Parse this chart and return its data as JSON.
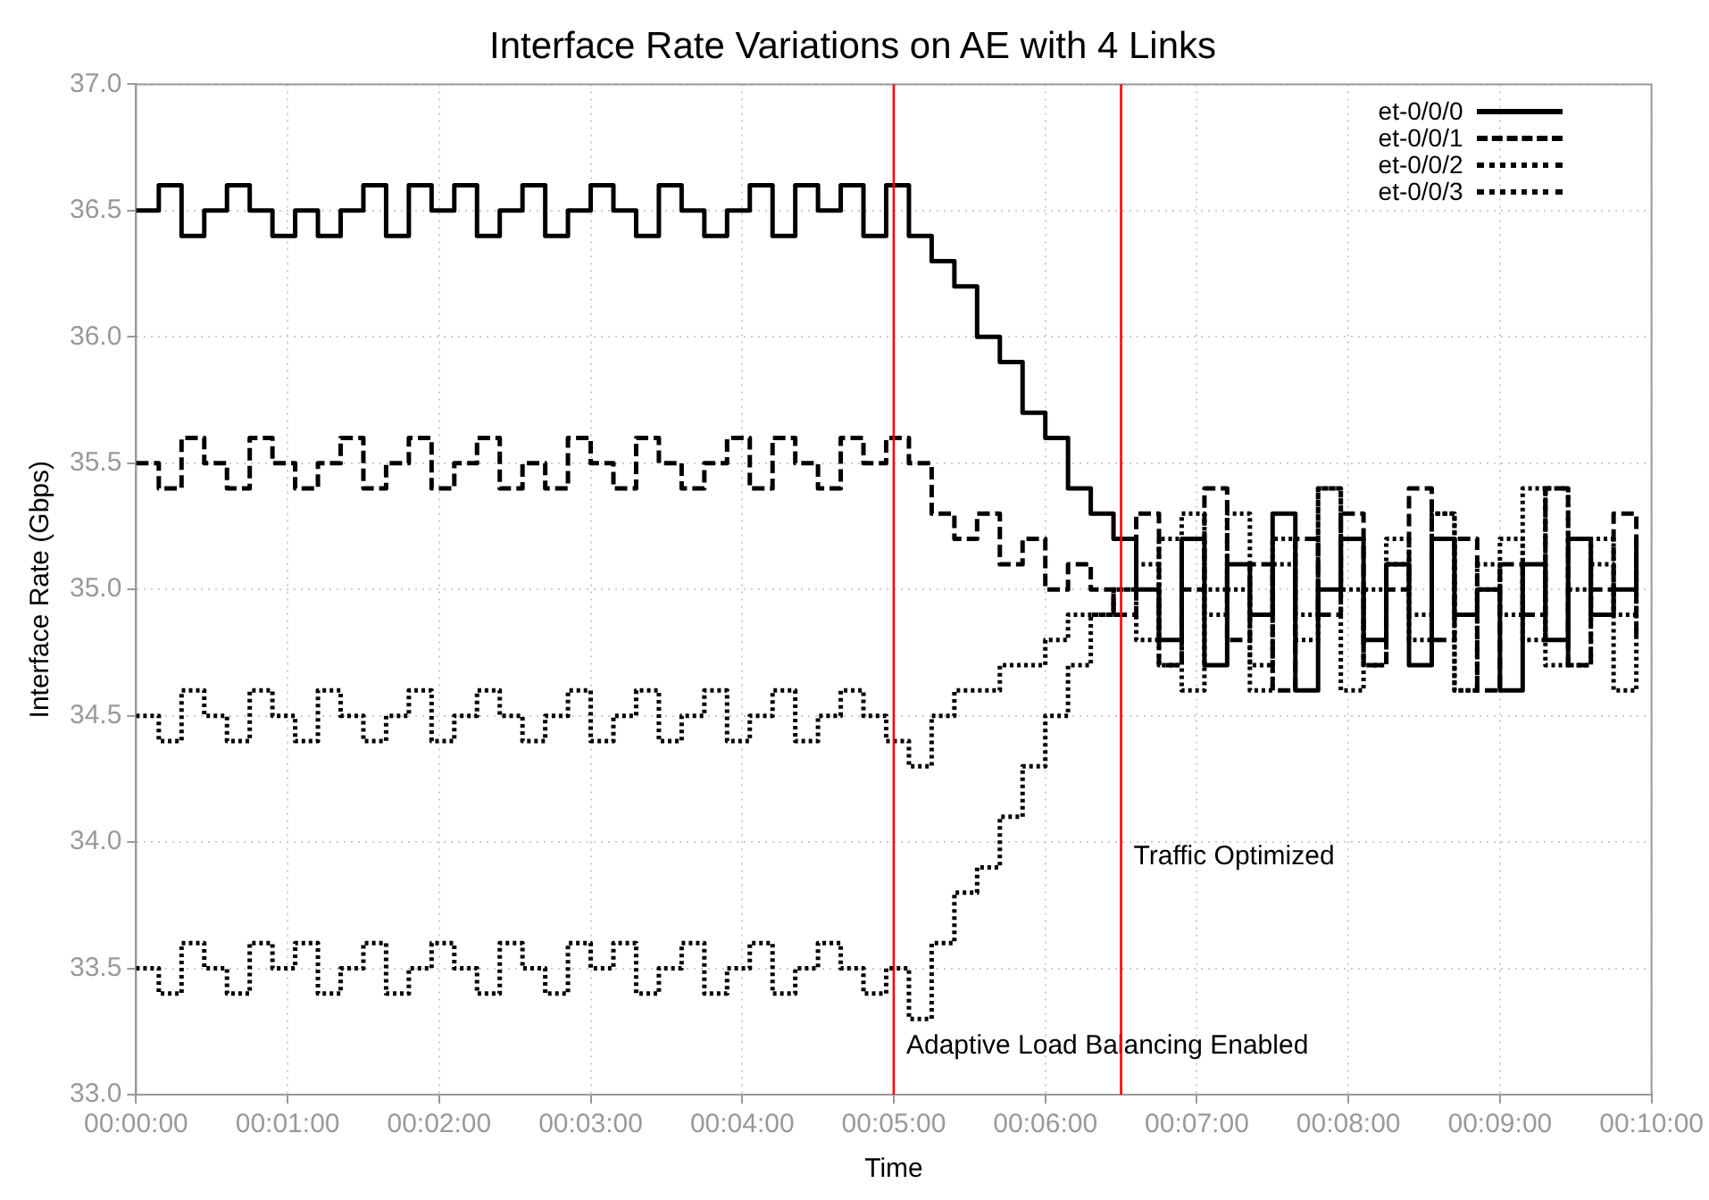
{
  "chart_data": {
    "type": "step",
    "title": "Interface Rate Variations on AE with 4 Links",
    "xlabel": "Time",
    "ylabel": "Interface Rate (Gbps)",
    "x": [
      0,
      0.0025,
      0.005,
      0.0075,
      0.01,
      0.0125,
      0.015,
      0.0175,
      0.02,
      0.0225,
      0.025,
      0.0275,
      0.03,
      0.0325,
      0.035,
      0.0375,
      0.04,
      0.0425,
      0.045,
      0.0475,
      0.05,
      0.0525,
      0.055,
      0.0575,
      0.06,
      0.0625,
      0.065,
      0.0675,
      0.07,
      0.0725,
      0.075,
      0.0775,
      0.08,
      0.0825,
      0.085,
      0.0875,
      0.09,
      0.0925,
      0.095,
      0.0975,
      0.1,
      0.1025,
      0.105,
      0.1075,
      0.11,
      0.1125,
      0.115,
      0.1175,
      0.12,
      0.1225,
      0.125,
      0.1275,
      0.13,
      0.1325,
      0.135,
      0.1375,
      0.14,
      0.1425,
      0.145,
      0.1475,
      0.15,
      0.1525,
      0.155,
      0.1575,
      0.16,
      0.1625,
      0.165
    ],
    "series": [
      {
        "name": "et-0/0/0",
        "color": "#000000",
        "line_style": "solid",
        "values": [
          36.5,
          36.6,
          36.4,
          36.5,
          36.6,
          36.5,
          36.4,
          36.5,
          36.4,
          36.5,
          36.6,
          36.4,
          36.6,
          36.5,
          36.6,
          36.4,
          36.5,
          36.6,
          36.4,
          36.5,
          36.6,
          36.5,
          36.4,
          36.6,
          36.5,
          36.4,
          36.5,
          36.6,
          36.4,
          36.6,
          36.5,
          36.6,
          36.4,
          36.6,
          36.4,
          36.3,
          36.2,
          36.0,
          35.9,
          35.7,
          35.6,
          35.4,
          35.3,
          35.2,
          35.0,
          34.8,
          35.2,
          34.7,
          35.1,
          34.9,
          35.3,
          34.6,
          35.0,
          35.2,
          34.8,
          35.1,
          34.7,
          35.2,
          34.9,
          35.0,
          34.6,
          35.1,
          34.8,
          35.2,
          34.9,
          35.0,
          35.2
        ]
      },
      {
        "name": "et-0/0/1",
        "color": "#000000",
        "line_style": "dashed",
        "values": [
          35.5,
          35.4,
          35.6,
          35.5,
          35.4,
          35.6,
          35.5,
          35.4,
          35.5,
          35.6,
          35.4,
          35.5,
          35.6,
          35.4,
          35.5,
          35.6,
          35.4,
          35.5,
          35.4,
          35.6,
          35.5,
          35.4,
          35.6,
          35.5,
          35.4,
          35.5,
          35.6,
          35.4,
          35.6,
          35.5,
          35.4,
          35.6,
          35.5,
          35.6,
          35.5,
          35.3,
          35.2,
          35.3,
          35.1,
          35.2,
          35.0,
          35.1,
          35.0,
          34.9,
          35.3,
          34.7,
          35.0,
          35.4,
          34.8,
          35.1,
          34.6,
          35.2,
          34.9,
          35.3,
          34.7,
          35.0,
          35.4,
          34.8,
          35.2,
          34.6,
          35.1,
          34.9,
          35.4,
          34.7,
          35.0,
          35.3,
          34.8
        ]
      },
      {
        "name": "et-0/0/2",
        "color": "#000000",
        "line_style": "dotted",
        "values": [
          34.5,
          34.4,
          34.6,
          34.5,
          34.4,
          34.6,
          34.5,
          34.4,
          34.6,
          34.5,
          34.4,
          34.5,
          34.6,
          34.4,
          34.5,
          34.6,
          34.5,
          34.4,
          34.5,
          34.6,
          34.4,
          34.5,
          34.6,
          34.4,
          34.5,
          34.6,
          34.4,
          34.5,
          34.6,
          34.4,
          34.5,
          34.6,
          34.5,
          34.4,
          34.3,
          34.5,
          34.6,
          34.6,
          34.7,
          34.7,
          34.8,
          34.9,
          34.9,
          35.0,
          34.8,
          35.2,
          34.6,
          35.0,
          35.3,
          34.7,
          35.1,
          34.9,
          35.4,
          34.6,
          35.0,
          35.2,
          34.8,
          35.3,
          34.6,
          35.1,
          34.9,
          35.4,
          34.7,
          35.0,
          35.2,
          34.6,
          35.1
        ]
      },
      {
        "name": "et-0/0/3",
        "color": "#000000",
        "line_style": "dotted",
        "values": [
          33.5,
          33.4,
          33.6,
          33.5,
          33.4,
          33.6,
          33.5,
          33.6,
          33.4,
          33.5,
          33.6,
          33.4,
          33.5,
          33.6,
          33.5,
          33.4,
          33.6,
          33.5,
          33.4,
          33.6,
          33.5,
          33.6,
          33.4,
          33.5,
          33.6,
          33.4,
          33.5,
          33.6,
          33.4,
          33.5,
          33.6,
          33.5,
          33.4,
          33.5,
          33.3,
          33.6,
          33.8,
          33.9,
          34.1,
          34.3,
          34.5,
          34.7,
          34.9,
          35.0,
          35.1,
          34.7,
          35.3,
          34.9,
          35.0,
          34.6,
          35.2,
          34.8,
          35.4,
          35.0,
          34.7,
          35.1,
          34.9,
          35.3,
          34.6,
          35.0,
          35.2,
          34.8,
          35.4,
          34.7,
          35.1,
          34.9,
          35.0
        ]
      }
    ],
    "xlim": [
      0,
      0.16667
    ],
    "xticks": [
      {
        "value": 0,
        "label": "00:00:00"
      },
      {
        "value": 0.016667,
        "label": "00:01:00"
      },
      {
        "value": 0.033333,
        "label": "00:02:00"
      },
      {
        "value": 0.05,
        "label": "00:03:00"
      },
      {
        "value": 0.066667,
        "label": "00:04:00"
      },
      {
        "value": 0.083333,
        "label": "00:05:00"
      },
      {
        "value": 0.1,
        "label": "00:06:00"
      },
      {
        "value": 0.116667,
        "label": "00:07:00"
      },
      {
        "value": 0.133333,
        "label": "00:08:00"
      },
      {
        "value": 0.15,
        "label": "00:09:00"
      },
      {
        "value": 0.16667,
        "label": "00:10:00"
      }
    ],
    "ylim": [
      33,
      37
    ],
    "yticks": [
      {
        "value": 33,
        "label": "33.0"
      },
      {
        "value": 33.5,
        "label": "33.5"
      },
      {
        "value": 34,
        "label": "34.0"
      },
      {
        "value": 34.5,
        "label": "34.5"
      },
      {
        "value": 35,
        "label": "35.0"
      },
      {
        "value": 35.5,
        "label": "35.5"
      },
      {
        "value": 36,
        "label": "36.0"
      },
      {
        "value": 36.5,
        "label": "36.5"
      },
      {
        "value": 37,
        "label": "37.0"
      }
    ],
    "ref_lines": [
      {
        "axis": "x",
        "value": 0.083333,
        "label": "Adaptive Load Balancing Enabled",
        "color": "#ff0000"
      },
      {
        "axis": "x",
        "value": 0.108333,
        "label": "Traffic Optimized",
        "color": "#ff0000"
      }
    ],
    "grid": true,
    "legend": "top right"
  }
}
